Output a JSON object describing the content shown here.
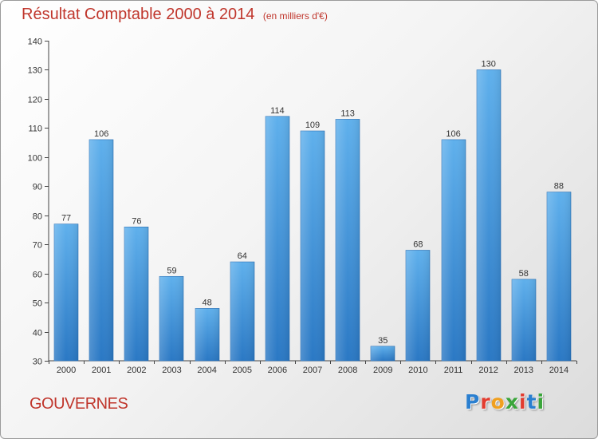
{
  "chart_data": {
    "type": "bar",
    "title": "Résultat Comptable 2000 à 2014",
    "unit_note": "(en milliers d'€)",
    "categories": [
      "2000",
      "2001",
      "2002",
      "2003",
      "2004",
      "2005",
      "2006",
      "2007",
      "2008",
      "2009",
      "2010",
      "2011",
      "2012",
      "2013",
      "2014"
    ],
    "values": [
      77,
      106,
      76,
      59,
      48,
      64,
      114,
      109,
      113,
      35,
      68,
      106,
      130,
      58,
      88
    ],
    "ylim": [
      30,
      140
    ],
    "yticks": [
      30,
      40,
      50,
      60,
      70,
      80,
      90,
      100,
      110,
      120,
      130,
      140
    ],
    "xlabel": "",
    "ylabel": "",
    "grid": false,
    "bar_color": "#3a90d8"
  },
  "footer": {
    "commune": "GOUVERNES",
    "logo_letters": [
      {
        "ch": "P",
        "color": "#2a7fd0"
      },
      {
        "ch": "r",
        "color": "#e23c2f"
      },
      {
        "ch": "o",
        "color": "#f0a020"
      },
      {
        "ch": "x",
        "color": "#3aa53a"
      },
      {
        "ch": "i",
        "color": "#e23c2f"
      },
      {
        "ch": "t",
        "color": "#2a7fd0"
      },
      {
        "ch": "i",
        "color": "#3aa53a"
      }
    ]
  }
}
